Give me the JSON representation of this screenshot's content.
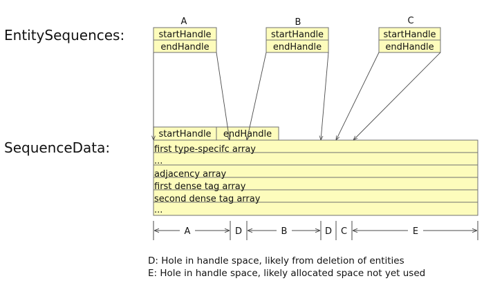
{
  "colors": {
    "cell_fill": "#fdfcbc",
    "cell_stroke": "#6f6f6f",
    "line": "#4a4a4a",
    "text": "#111111"
  },
  "left_labels": {
    "entity_sequences": "EntitySequences:",
    "sequence_data": "SequenceData:"
  },
  "entity_sequences": [
    {
      "name": "A",
      "start_label": "startHandle",
      "end_label": "endHandle"
    },
    {
      "name": "B",
      "start_label": "startHandle",
      "end_label": "endHandle"
    },
    {
      "name": "C",
      "start_label": "startHandle",
      "end_label": "endHandle"
    }
  ],
  "sequence_data": {
    "start_label": "startHandle",
    "end_label": "endHandle",
    "rows": [
      "first type-specifc array",
      "...",
      "adjacency array",
      "first dense tag array",
      "second dense tag array",
      "..."
    ]
  },
  "handle_space": {
    "segments": [
      "A",
      "D",
      "B",
      "D",
      "C",
      "E"
    ]
  },
  "legend": {
    "d": "D: Hole in handle space, likely from deletion of entities",
    "e": "E: Hole in handle space, likely allocated space not yet used"
  }
}
